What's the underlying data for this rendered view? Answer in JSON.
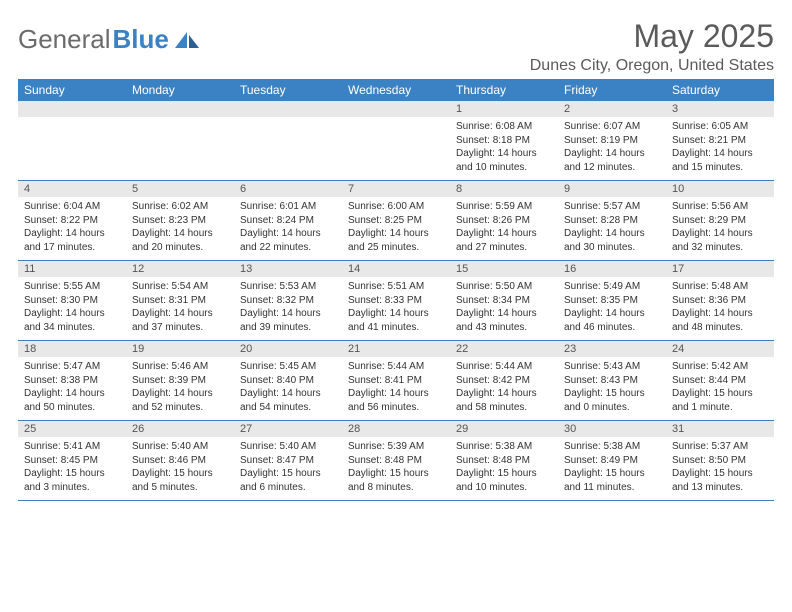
{
  "brand": {
    "name_gray": "General",
    "name_blue": "Blue"
  },
  "title": "May 2025",
  "location": "Dunes City, Oregon, United States",
  "colors": {
    "header_bg": "#3b82c4",
    "header_text": "#ffffff",
    "daynum_bg": "#e8e8e8",
    "border": "#3b82c4",
    "text": "#333333",
    "title_text": "#5a5a5a"
  },
  "day_headers": [
    "Sunday",
    "Monday",
    "Tuesday",
    "Wednesday",
    "Thursday",
    "Friday",
    "Saturday"
  ],
  "weeks": [
    [
      null,
      null,
      null,
      null,
      {
        "n": "1",
        "sunrise": "6:08 AM",
        "sunset": "8:18 PM",
        "daylight": "14 hours and 10 minutes."
      },
      {
        "n": "2",
        "sunrise": "6:07 AM",
        "sunset": "8:19 PM",
        "daylight": "14 hours and 12 minutes."
      },
      {
        "n": "3",
        "sunrise": "6:05 AM",
        "sunset": "8:21 PM",
        "daylight": "14 hours and 15 minutes."
      }
    ],
    [
      {
        "n": "4",
        "sunrise": "6:04 AM",
        "sunset": "8:22 PM",
        "daylight": "14 hours and 17 minutes."
      },
      {
        "n": "5",
        "sunrise": "6:02 AM",
        "sunset": "8:23 PM",
        "daylight": "14 hours and 20 minutes."
      },
      {
        "n": "6",
        "sunrise": "6:01 AM",
        "sunset": "8:24 PM",
        "daylight": "14 hours and 22 minutes."
      },
      {
        "n": "7",
        "sunrise": "6:00 AM",
        "sunset": "8:25 PM",
        "daylight": "14 hours and 25 minutes."
      },
      {
        "n": "8",
        "sunrise": "5:59 AM",
        "sunset": "8:26 PM",
        "daylight": "14 hours and 27 minutes."
      },
      {
        "n": "9",
        "sunrise": "5:57 AM",
        "sunset": "8:28 PM",
        "daylight": "14 hours and 30 minutes."
      },
      {
        "n": "10",
        "sunrise": "5:56 AM",
        "sunset": "8:29 PM",
        "daylight": "14 hours and 32 minutes."
      }
    ],
    [
      {
        "n": "11",
        "sunrise": "5:55 AM",
        "sunset": "8:30 PM",
        "daylight": "14 hours and 34 minutes."
      },
      {
        "n": "12",
        "sunrise": "5:54 AM",
        "sunset": "8:31 PM",
        "daylight": "14 hours and 37 minutes."
      },
      {
        "n": "13",
        "sunrise": "5:53 AM",
        "sunset": "8:32 PM",
        "daylight": "14 hours and 39 minutes."
      },
      {
        "n": "14",
        "sunrise": "5:51 AM",
        "sunset": "8:33 PM",
        "daylight": "14 hours and 41 minutes."
      },
      {
        "n": "15",
        "sunrise": "5:50 AM",
        "sunset": "8:34 PM",
        "daylight": "14 hours and 43 minutes."
      },
      {
        "n": "16",
        "sunrise": "5:49 AM",
        "sunset": "8:35 PM",
        "daylight": "14 hours and 46 minutes."
      },
      {
        "n": "17",
        "sunrise": "5:48 AM",
        "sunset": "8:36 PM",
        "daylight": "14 hours and 48 minutes."
      }
    ],
    [
      {
        "n": "18",
        "sunrise": "5:47 AM",
        "sunset": "8:38 PM",
        "daylight": "14 hours and 50 minutes."
      },
      {
        "n": "19",
        "sunrise": "5:46 AM",
        "sunset": "8:39 PM",
        "daylight": "14 hours and 52 minutes."
      },
      {
        "n": "20",
        "sunrise": "5:45 AM",
        "sunset": "8:40 PM",
        "daylight": "14 hours and 54 minutes."
      },
      {
        "n": "21",
        "sunrise": "5:44 AM",
        "sunset": "8:41 PM",
        "daylight": "14 hours and 56 minutes."
      },
      {
        "n": "22",
        "sunrise": "5:44 AM",
        "sunset": "8:42 PM",
        "daylight": "14 hours and 58 minutes."
      },
      {
        "n": "23",
        "sunrise": "5:43 AM",
        "sunset": "8:43 PM",
        "daylight": "15 hours and 0 minutes."
      },
      {
        "n": "24",
        "sunrise": "5:42 AM",
        "sunset": "8:44 PM",
        "daylight": "15 hours and 1 minute."
      }
    ],
    [
      {
        "n": "25",
        "sunrise": "5:41 AM",
        "sunset": "8:45 PM",
        "daylight": "15 hours and 3 minutes."
      },
      {
        "n": "26",
        "sunrise": "5:40 AM",
        "sunset": "8:46 PM",
        "daylight": "15 hours and 5 minutes."
      },
      {
        "n": "27",
        "sunrise": "5:40 AM",
        "sunset": "8:47 PM",
        "daylight": "15 hours and 6 minutes."
      },
      {
        "n": "28",
        "sunrise": "5:39 AM",
        "sunset": "8:48 PM",
        "daylight": "15 hours and 8 minutes."
      },
      {
        "n": "29",
        "sunrise": "5:38 AM",
        "sunset": "8:48 PM",
        "daylight": "15 hours and 10 minutes."
      },
      {
        "n": "30",
        "sunrise": "5:38 AM",
        "sunset": "8:49 PM",
        "daylight": "15 hours and 11 minutes."
      },
      {
        "n": "31",
        "sunrise": "5:37 AM",
        "sunset": "8:50 PM",
        "daylight": "15 hours and 13 minutes."
      }
    ]
  ],
  "labels": {
    "sunrise": "Sunrise:",
    "sunset": "Sunset:",
    "daylight": "Daylight:"
  }
}
